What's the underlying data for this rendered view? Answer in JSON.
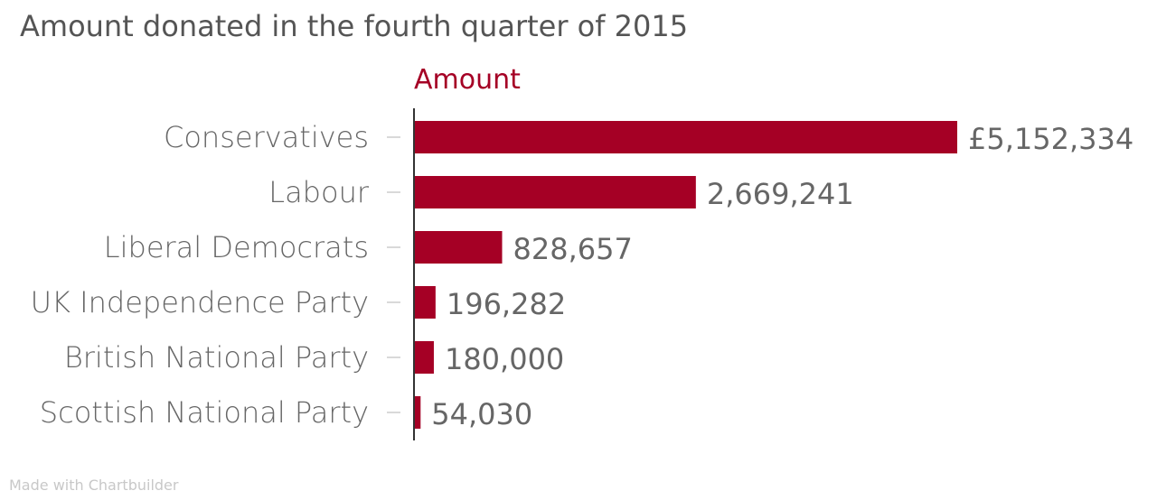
{
  "chart_data": {
    "type": "bar",
    "orientation": "horizontal",
    "title": "Amount donated in the fourth quarter of 2015",
    "series_label": "Amount",
    "categories": [
      "Conservatives",
      "Labour",
      "Liberal Democrats",
      "UK Independence Party",
      "British National Party",
      "Scottish National Party"
    ],
    "values": [
      5152334,
      2669241,
      828657,
      196282,
      180000,
      54030
    ],
    "value_labels": [
      "£5,152,334",
      "2,669,241",
      "828,657",
      "196,282",
      "180,000",
      "54,030"
    ],
    "grid": false,
    "colors": {
      "bar": "#a50025",
      "text": "#666666",
      "title": "#555555",
      "footer": "#c8c8c8",
      "axis": "#333333",
      "tick": "#cccccc"
    }
  },
  "footer": "Made with Chartbuilder"
}
